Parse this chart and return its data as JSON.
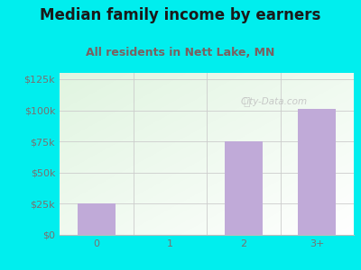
{
  "title": "Median family income by earners",
  "subtitle": "All residents in Nett Lake, MN",
  "categories": [
    "0",
    "1",
    "2",
    "3+"
  ],
  "values": [
    25000,
    0,
    75000,
    101000
  ],
  "bar_color": "#c0aad8",
  "background_outer": "#00eeee",
  "title_color": "#1a1a1a",
  "subtitle_color": "#7a6060",
  "axis_label_color": "#7a7070",
  "ytick_labels": [
    "$0",
    "$25k",
    "$50k",
    "$75k",
    "$100k",
    "$125k"
  ],
  "ytick_values": [
    0,
    25000,
    50000,
    75000,
    100000,
    125000
  ],
  "ylim": [
    0,
    130000
  ],
  "watermark": "City-Data.com",
  "title_fontsize": 12,
  "subtitle_fontsize": 9,
  "tick_fontsize": 8
}
